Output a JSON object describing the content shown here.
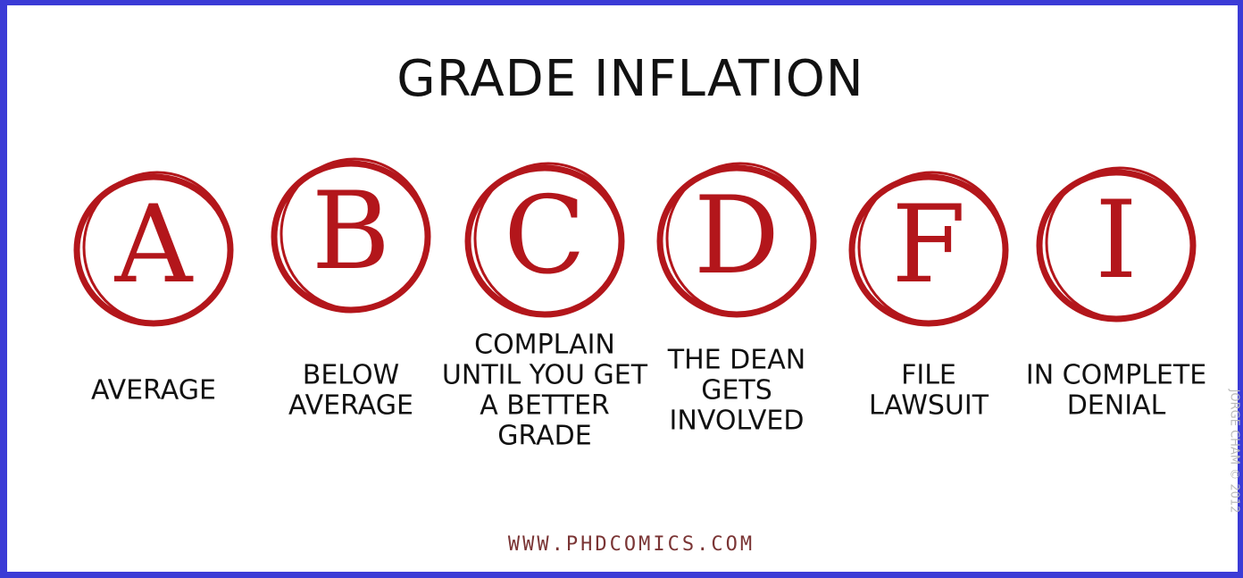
{
  "title": "GRADE INFLATION",
  "grades": [
    {
      "letter": "A",
      "caption": [
        "AVERAGE"
      ]
    },
    {
      "letter": "B",
      "caption": [
        "BELOW",
        "AVERAGE"
      ]
    },
    {
      "letter": "C",
      "caption": [
        "COMPLAIN",
        "UNTIL YOU GET",
        "A BETTER",
        "GRADE"
      ]
    },
    {
      "letter": "D",
      "caption": [
        "THE DEAN",
        "GETS",
        "INVOLVED"
      ]
    },
    {
      "letter": "F",
      "caption": [
        "FILE",
        "LAWSUIT"
      ]
    },
    {
      "letter": "I",
      "caption": [
        "IN COMPLETE",
        "DENIAL"
      ]
    }
  ],
  "footer": "WWW.PHDCOMICS.COM",
  "copyright": "JORGE CHAM © 2012"
}
